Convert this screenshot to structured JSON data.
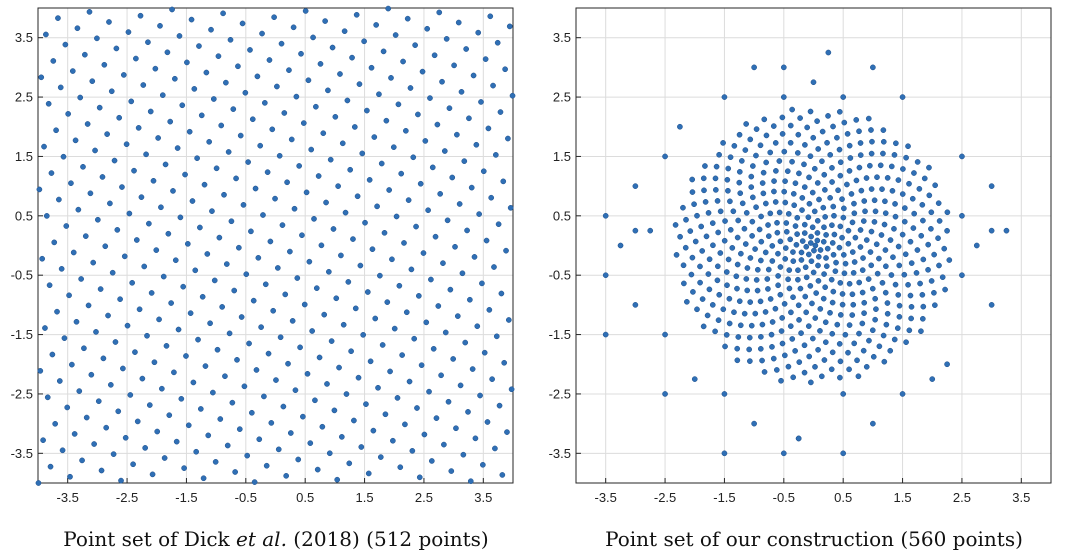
{
  "chart_data": [
    {
      "type": "scatter",
      "caption": {
        "prefix": "Point set of Dick ",
        "italic": "et al.",
        "suffix": " (2018) (512 points)"
      },
      "xlim": [
        -4,
        4
      ],
      "ylim": [
        -4,
        4
      ],
      "grid": true,
      "xticks": [
        -3.5,
        -2.5,
        -1.5,
        -0.5,
        0.5,
        1.5,
        2.5,
        3.5
      ],
      "yticks": [
        -3.5,
        -2.5,
        -1.5,
        -0.5,
        0.5,
        1.5,
        2.5,
        3.5
      ],
      "xtick_labels": [
        "-3.5",
        "-2.5",
        "-1.5",
        "-0.5",
        "0.5",
        "1.5",
        "2.5",
        "3.5"
      ],
      "ytick_labels": [
        "-3.5",
        "-2.5",
        "-1.5",
        "-0.5",
        "0.5",
        "1.5",
        "2.5",
        "3.5"
      ],
      "point_count": 512,
      "color": "#2f6fb5",
      "generator": "golden-ratio rank-1 lattice on [-4,4]^2"
    },
    {
      "type": "scatter",
      "caption": {
        "prefix": "Point set of our construction (560 points)",
        "italic": "",
        "suffix": ""
      },
      "xlim": [
        -4,
        4
      ],
      "ylim": [
        -4,
        4
      ],
      "grid": true,
      "xticks": [
        -3.5,
        -2.5,
        -1.5,
        -0.5,
        0.5,
        1.5,
        2.5,
        3.5
      ],
      "yticks": [
        -3.5,
        -2.5,
        -1.5,
        -0.5,
        0.5,
        1.5,
        2.5,
        3.5
      ],
      "xtick_labels": [
        "-3.5",
        "-2.5",
        "-1.5",
        "-0.5",
        "0.5",
        "1.5",
        "2.5",
        "3.5"
      ],
      "ytick_labels": [
        "-3.5",
        "-2.5",
        "-1.5",
        "-0.5",
        "0.5",
        "1.5",
        "2.5",
        "3.5"
      ],
      "point_count": 560,
      "color": "#2f6fb5",
      "generator": "radially concentrated sunflower set with outlying points",
      "outliers": [
        [
          -3.5,
          0.5
        ],
        [
          -3.5,
          -0.5
        ],
        [
          -3.5,
          -1.5
        ],
        [
          -3.25,
          0.0
        ],
        [
          -3.0,
          1.0
        ],
        [
          -3.0,
          -1.0
        ],
        [
          -3.0,
          0.25
        ],
        [
          3.0,
          1.0
        ],
        [
          3.0,
          -1.0
        ],
        [
          3.0,
          0.25
        ],
        [
          3.25,
          0.25
        ],
        [
          2.75,
          0.0
        ],
        [
          -1.0,
          3.0
        ],
        [
          -1.0,
          -3.0
        ],
        [
          0.25,
          3.25
        ],
        [
          1.0,
          3.0
        ],
        [
          1.0,
          -3.0
        ],
        [
          -0.25,
          -3.25
        ],
        [
          -1.5,
          -3.5
        ],
        [
          -0.5,
          -3.5
        ],
        [
          0.5,
          -3.5
        ],
        [
          0.0,
          2.75
        ],
        [
          -0.5,
          3.0
        ],
        [
          -2.5,
          -2.5
        ],
        [
          -2.25,
          2.0
        ],
        [
          2.0,
          -2.25
        ],
        [
          -2.0,
          -2.25
        ],
        [
          2.25,
          -2.0
        ],
        [
          2.5,
          0.5
        ],
        [
          -2.5,
          -1.5
        ],
        [
          -2.5,
          1.5
        ],
        [
          2.5,
          -0.5
        ],
        [
          2.5,
          1.5
        ],
        [
          -2.75,
          0.25
        ],
        [
          -0.25,
          -3.25
        ],
        [
          1.5,
          -2.5
        ],
        [
          1.5,
          2.5
        ],
        [
          -1.5,
          2.5
        ],
        [
          -1.5,
          -2.5
        ],
        [
          0.5,
          2.5
        ],
        [
          -0.5,
          2.5
        ],
        [
          0.5,
          -2.5
        ]
      ]
    }
  ]
}
